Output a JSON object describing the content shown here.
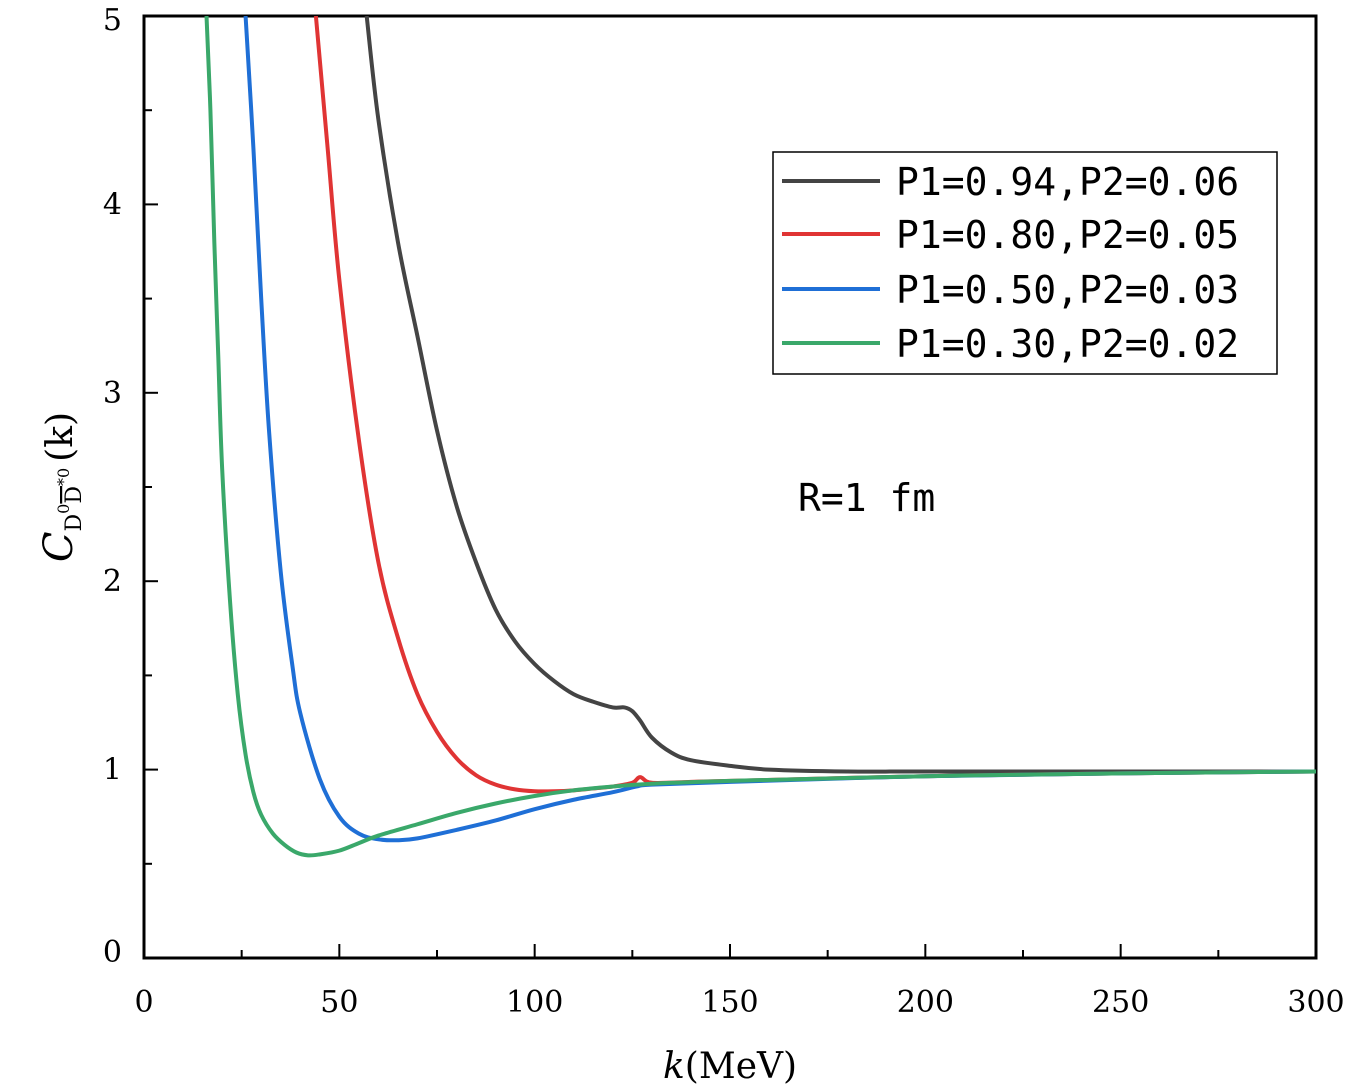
{
  "chart_data": {
    "type": "line",
    "xlabel_var": "k",
    "xlabel_unit": "(MeV)",
    "ylabel_var": "C",
    "ylabel_sub_base": "D",
    "ylabel_sub_sup1": "0",
    "ylabel_sub_bar": "D",
    "ylabel_sub_sup2": "*0",
    "ylabel_arg": "(k)",
    "xlim": [
      0,
      300
    ],
    "ylim": [
      0,
      5
    ],
    "xticks": [
      "0",
      "50",
      "100",
      "150",
      "200",
      "250",
      "300"
    ],
    "yticks": [
      "0",
      "1",
      "2",
      "3",
      "4",
      "5"
    ],
    "annotation": "R=1 fm",
    "legend_position": "top-right",
    "series": [
      {
        "name": "P1=0.94,P2=0.06",
        "color": "#444444",
        "x": [
          57,
          60,
          65,
          70,
          75,
          80,
          85,
          90,
          95,
          100,
          105,
          110,
          115,
          120,
          123,
          125,
          127,
          130,
          135,
          140,
          150,
          160,
          180,
          200,
          250,
          300
        ],
        "y": [
          5.0,
          4.45,
          3.8,
          3.3,
          2.8,
          2.4,
          2.1,
          1.85,
          1.68,
          1.56,
          1.47,
          1.4,
          1.36,
          1.33,
          1.33,
          1.31,
          1.26,
          1.17,
          1.09,
          1.05,
          1.02,
          1.0,
          0.99,
          0.99,
          0.99,
          0.99
        ]
      },
      {
        "name": "P1=0.80,P2=0.05",
        "color": "#e03434",
        "x": [
          44,
          47,
          50,
          55,
          60,
          65,
          70,
          75,
          80,
          85,
          90,
          95,
          100,
          105,
          110,
          115,
          120,
          125,
          127,
          130,
          140,
          150,
          200,
          250,
          300
        ],
        "y": [
          5.0,
          4.3,
          3.6,
          2.75,
          2.1,
          1.7,
          1.4,
          1.2,
          1.06,
          0.97,
          0.92,
          0.895,
          0.885,
          0.885,
          0.89,
          0.9,
          0.91,
          0.93,
          0.96,
          0.93,
          0.935,
          0.94,
          0.965,
          0.98,
          0.99
        ]
      },
      {
        "name": "P1=0.50,P2=0.03",
        "color": "#1f6fd6",
        "x": [
          26,
          28,
          30,
          32,
          35,
          38,
          40,
          45,
          50,
          55,
          60,
          65,
          70,
          80,
          90,
          100,
          110,
          120,
          126,
          130,
          150,
          200,
          250,
          300
        ],
        "y": [
          5.0,
          4.3,
          3.5,
          2.8,
          2.05,
          1.55,
          1.3,
          0.95,
          0.75,
          0.66,
          0.63,
          0.625,
          0.635,
          0.68,
          0.73,
          0.79,
          0.84,
          0.88,
          0.91,
          0.92,
          0.935,
          0.965,
          0.98,
          0.99
        ]
      },
      {
        "name": "P1=0.30,P2=0.02",
        "color": "#3aa86a",
        "x": [
          16,
          17,
          18,
          19,
          20,
          22,
          24,
          26,
          28,
          30,
          33,
          36,
          39,
          42,
          45,
          50,
          55,
          60,
          70,
          80,
          90,
          100,
          110,
          120,
          130,
          150,
          200,
          250,
          300
        ],
        "y": [
          5.0,
          4.5,
          3.8,
          3.2,
          2.6,
          1.9,
          1.4,
          1.08,
          0.88,
          0.76,
          0.66,
          0.6,
          0.56,
          0.545,
          0.55,
          0.57,
          0.61,
          0.65,
          0.71,
          0.77,
          0.82,
          0.86,
          0.89,
          0.91,
          0.925,
          0.94,
          0.965,
          0.98,
          0.99
        ]
      }
    ]
  }
}
